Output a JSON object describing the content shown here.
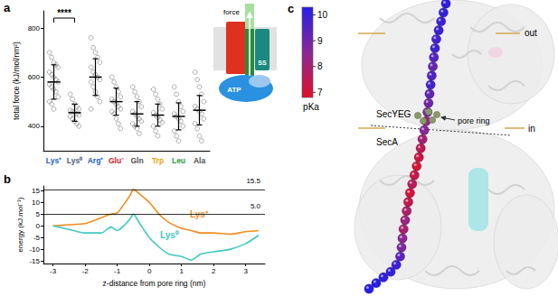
{
  "chart_data": [
    {
      "type": "scatter",
      "panel_label": "a",
      "ylabel": "total force (kJ/mol/nm²)",
      "categories": [
        "Lys⁺",
        "Lys⁰",
        "Arg⁺",
        "Glu⁻",
        "Gln",
        "Trp",
        "Leu",
        "Ala"
      ],
      "colors": [
        "#2060c8",
        "#4a5a7a",
        "#2060c8",
        "#c8202a",
        "#505050",
        "#e8a000",
        "#2a9a3a",
        "#505050"
      ],
      "points": [
        [
          700,
          680,
          660,
          650,
          640,
          620,
          610,
          600,
          590,
          580,
          570,
          560,
          550,
          540,
          520,
          500,
          490,
          470
        ],
        [
          530,
          510,
          490,
          480,
          470,
          465,
          460,
          455,
          450,
          445,
          440,
          430,
          420,
          410,
          400
        ],
        [
          760,
          720,
          700,
          680,
          660,
          640,
          620,
          610,
          600,
          590,
          580,
          560,
          540,
          520,
          500,
          470
        ],
        [
          600,
          580,
          560,
          540,
          520,
          510,
          500,
          490,
          480,
          470,
          460,
          450,
          430,
          410,
          390
        ],
        [
          560,
          540,
          520,
          500,
          480,
          460,
          450,
          440,
          430,
          420,
          410,
          400,
          390,
          370
        ],
        [
          550,
          530,
          510,
          490,
          470,
          455,
          445,
          435,
          425,
          415,
          400,
          380,
          360
        ],
        [
          560,
          530,
          500,
          480,
          460,
          450,
          440,
          430,
          420,
          400,
          380,
          360,
          340
        ],
        [
          620,
          590,
          560,
          530,
          500,
          480,
          470,
          460,
          450,
          430,
          410,
          390,
          360,
          340
        ]
      ],
      "means": [
        580,
        455,
        600,
        500,
        450,
        445,
        440,
        465
      ],
      "sd": [
        70,
        35,
        75,
        55,
        50,
        45,
        55,
        60
      ],
      "ylim": [
        300,
        870
      ],
      "yticks": [
        400,
        600,
        800
      ],
      "grid": false,
      "significance": {
        "between": [
          0,
          1
        ],
        "label": "****"
      },
      "inset": {
        "force_label": "force",
        "motor_label": "ATP",
        "bond_label": "SS"
      }
    },
    {
      "type": "line",
      "panel_label": "b",
      "xlabel": "z-distance from pore ring (nm)",
      "ylabel": "energy (kJ.mol⁻¹)",
      "x": [
        -3,
        -2.5,
        -2,
        -1.5,
        -1.2,
        -1,
        -0.8,
        -0.6,
        -0.5,
        -0.3,
        0,
        0.3,
        0.6,
        1,
        1.3,
        1.6,
        2,
        2.5,
        3,
        3.4
      ],
      "series": [
        {
          "name": "Lys⁺",
          "color": "#f28c1e",
          "values": [
            0,
            0.5,
            1,
            3.5,
            5,
            5.5,
            9,
            13,
            15.5,
            13.5,
            10,
            5,
            1.5,
            -1,
            -2,
            -3,
            -3,
            -3.5,
            -2.5,
            -2
          ]
        },
        {
          "name": "Lys⁰",
          "color": "#3fc8c0",
          "values": [
            0,
            -1.5,
            -3,
            -3,
            -0.5,
            -2,
            0,
            3,
            5,
            1,
            -5,
            -9,
            -12,
            -13,
            -14.5,
            -12,
            -11,
            -10,
            -7.5,
            -4
          ]
        }
      ],
      "xlim": [
        -3.3,
        3.6
      ],
      "xticks": [
        -3,
        -2,
        -1,
        0,
        1,
        2,
        3
      ],
      "ylim": [
        -16,
        17
      ],
      "yticks": [
        -15,
        -10,
        -5,
        0,
        5,
        10,
        15
      ],
      "reference_lines": [
        {
          "value": 15.5,
          "label": "15.5"
        },
        {
          "value": 5,
          "label": "5.0"
        }
      ],
      "grid": false
    }
  ],
  "panel_c": {
    "panel_label": "c",
    "colorbar": {
      "label": "pKa",
      "range": [
        6.8,
        10.3
      ],
      "ticks": [
        7,
        8,
        9,
        10
      ]
    },
    "pKa_values": [
      10.2,
      10.1,
      10,
      10,
      9.8,
      9.9,
      9.5,
      9.2,
      9.6,
      9.8,
      9.3,
      9.0,
      8.7,
      8.3,
      8.6,
      8.0,
      7.5,
      7.2,
      7.0,
      7.3,
      7.6,
      7.1,
      7.4,
      7.8,
      8.2,
      7.9,
      8.5,
      8.8,
      9.4,
      9.9,
      10.1,
      10.2,
      10.3,
      10.3
    ],
    "labels": {
      "outside": "out",
      "inside": "in",
      "channel": "SecYEG",
      "motor": "SecA",
      "pore": "pore ring"
    }
  }
}
